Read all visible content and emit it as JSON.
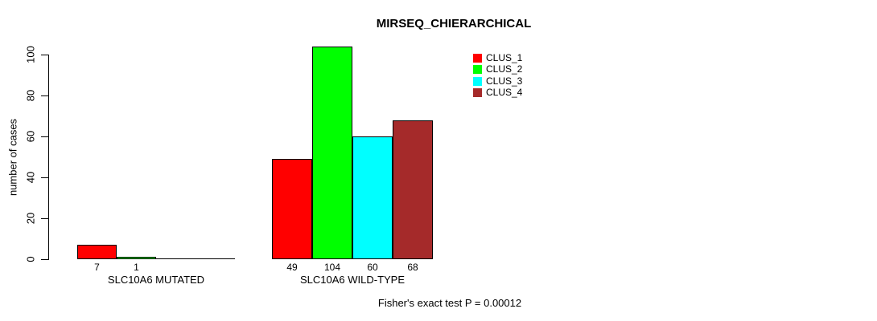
{
  "chart_data": {
    "type": "bar",
    "title": "MIRSEQ_CHIERARCHICAL",
    "ylabel": "number of cases",
    "xlabel": "",
    "ylim": [
      0,
      100
    ],
    "yticks": [
      0,
      20,
      40,
      60,
      80,
      100
    ],
    "grid": false,
    "legend_position": "top-right",
    "categories": [
      "SLC10A6 MUTATED",
      "SLC10A6 WILD-TYPE"
    ],
    "series": [
      {
        "name": "CLUS_1",
        "color": "#ff0000",
        "values": [
          7,
          49
        ]
      },
      {
        "name": "CLUS_2",
        "color": "#00ff00",
        "values": [
          1,
          104
        ]
      },
      {
        "name": "CLUS_3",
        "color": "#00ffff",
        "values": [
          0,
          60
        ]
      },
      {
        "name": "CLUS_4",
        "color": "#a52a2a",
        "values": [
          0,
          68
        ]
      }
    ],
    "bar_value_labels": [
      [
        "7",
        "1",
        "",
        ""
      ],
      [
        "49",
        "104",
        "60",
        "68"
      ]
    ],
    "footnote": "Fisher's exact test P = 0.00012"
  }
}
